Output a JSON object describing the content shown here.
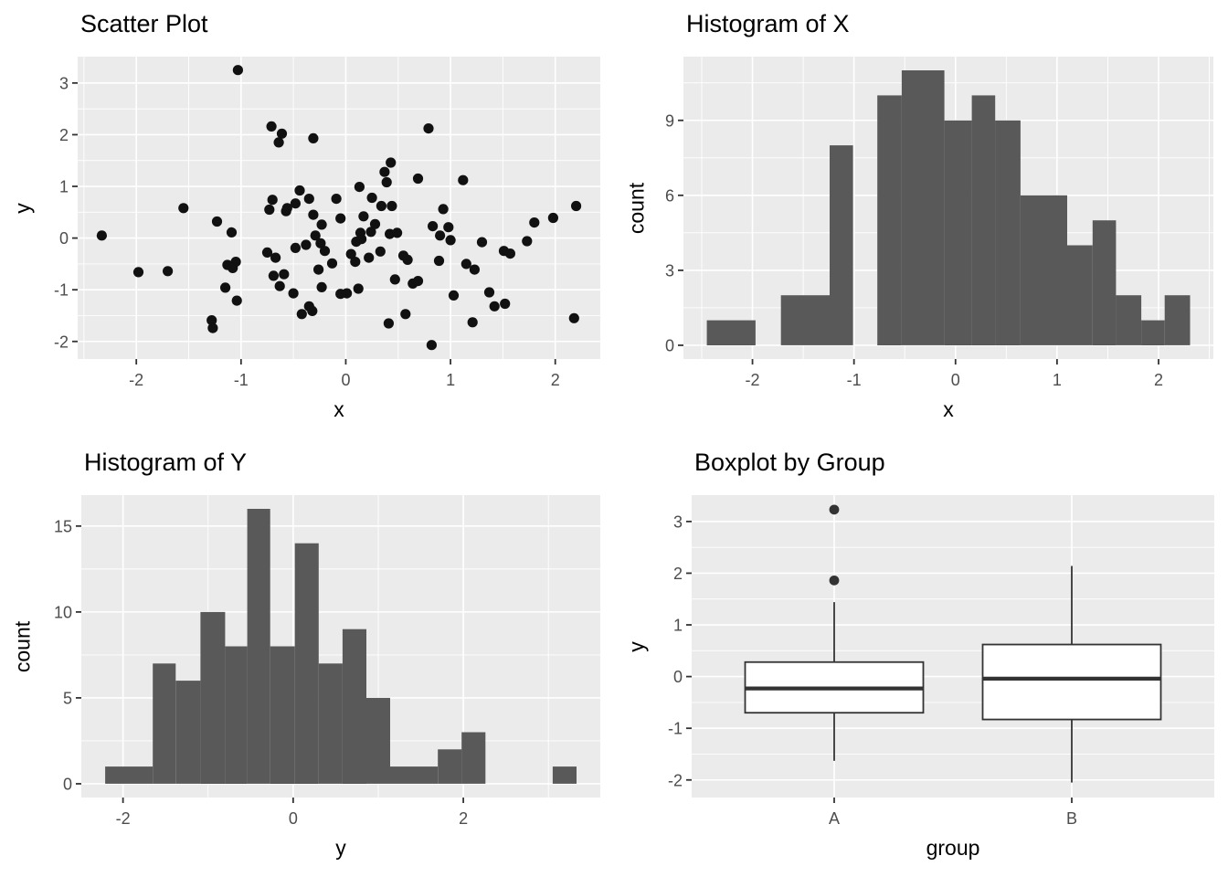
{
  "colors": {
    "background": "#FFFFFF",
    "panel_background": "#EBEBEB",
    "gridline": "#FFFFFF",
    "bar_fill": "#595959",
    "point_fill": "#111111",
    "box_stroke": "#333333",
    "box_fill": "#FFFFFF",
    "tick_mark": "#333333",
    "tick_label": "#4D4D4D",
    "title_text": "#000000",
    "axis_title_text": "#000000"
  },
  "chart_data": [
    {
      "id": "scatter",
      "type": "scatter",
      "title": "Scatter Plot",
      "xlabel": "x",
      "ylabel": "y",
      "xlim": [
        -2.56,
        2.43
      ],
      "ylim": [
        -2.34,
        3.51
      ],
      "x_tick_values": [
        -2,
        -1,
        0,
        1,
        2
      ],
      "x_tick_labels": [
        "-2",
        "-1",
        "0",
        "1",
        "2"
      ],
      "x_minor": [
        -2.5,
        -1.5,
        -0.5,
        0.5,
        1.5
      ],
      "y_tick_values": [
        -2,
        -1,
        0,
        1,
        2,
        3
      ],
      "y_tick_labels": [
        "-2",
        "-1",
        "0",
        "1",
        "2",
        "3"
      ],
      "y_minor": [
        -1.5,
        -0.5,
        0.5,
        1.5,
        2.5
      ],
      "grid": true,
      "legend": "none",
      "points": [
        [
          -1.03,
          3.25
        ],
        [
          -0.71,
          2.16
        ],
        [
          -0.61,
          2.02
        ],
        [
          -0.64,
          1.85
        ],
        [
          -0.31,
          1.93
        ],
        [
          0.79,
          2.12
        ],
        [
          0.43,
          1.46
        ],
        [
          0.37,
          1.28
        ],
        [
          0.39,
          1.08
        ],
        [
          0.69,
          1.15
        ],
        [
          1.12,
          1.12
        ],
        [
          0.13,
          0.99
        ],
        [
          -0.44,
          0.92
        ],
        [
          0.25,
          0.78
        ],
        [
          -0.7,
          0.74
        ],
        [
          -0.35,
          0.76
        ],
        [
          -0.09,
          0.76
        ],
        [
          -1.55,
          0.58
        ],
        [
          -0.56,
          0.58
        ],
        [
          -0.48,
          0.67
        ],
        [
          0.34,
          0.62
        ],
        [
          0.44,
          0.62
        ],
        [
          0.93,
          0.56
        ],
        [
          2.2,
          0.62
        ],
        [
          -1.23,
          0.32
        ],
        [
          -1.09,
          0.11
        ],
        [
          -2.33,
          0.05
        ],
        [
          -0.73,
          0.55
        ],
        [
          -0.57,
          0.52
        ],
        [
          -0.31,
          0.45
        ],
        [
          -0.23,
          0.26
        ],
        [
          -0.29,
          0.05
        ],
        [
          -0.05,
          0.38
        ],
        [
          0.17,
          0.42
        ],
        [
          0.28,
          0.27
        ],
        [
          0.14,
          0.1
        ],
        [
          0.24,
          0.12
        ],
        [
          0.1,
          -0.07
        ],
        [
          0.15,
          -0.02
        ],
        [
          0.42,
          0.08
        ],
        [
          0.49,
          0.1
        ],
        [
          0.83,
          0.23
        ],
        [
          0.98,
          0.21
        ],
        [
          0.9,
          0.05
        ],
        [
          1.0,
          -0.04
        ],
        [
          1.8,
          0.3
        ],
        [
          1.98,
          0.39
        ],
        [
          1.73,
          -0.06
        ],
        [
          1.3,
          -0.08
        ],
        [
          1.51,
          -0.25
        ],
        [
          1.57,
          -0.3
        ],
        [
          0.05,
          -0.31
        ],
        [
          0.09,
          -0.46
        ],
        [
          0.22,
          -0.38
        ],
        [
          0.33,
          -0.26
        ],
        [
          0.55,
          -0.34
        ],
        [
          0.59,
          -0.42
        ],
        [
          0.89,
          -0.44
        ],
        [
          1.15,
          -0.5
        ],
        [
          1.23,
          -0.61
        ],
        [
          0.47,
          -0.8
        ],
        [
          0.64,
          -0.88
        ],
        [
          0.69,
          -0.83
        ],
        [
          0.01,
          -1.07
        ],
        [
          0.12,
          -0.98
        ],
        [
          1.03,
          -1.11
        ],
        [
          1.37,
          -1.05
        ],
        [
          1.42,
          -1.32
        ],
        [
          1.52,
          -1.27
        ],
        [
          0.57,
          -1.47
        ],
        [
          0.41,
          -1.65
        ],
        [
          1.21,
          -1.63
        ],
        [
          2.18,
          -1.55
        ],
        [
          0.82,
          -2.07
        ],
        [
          -0.75,
          -0.28
        ],
        [
          -0.67,
          -0.38
        ],
        [
          -0.48,
          -0.19
        ],
        [
          -0.38,
          -0.13
        ],
        [
          -0.24,
          -0.1
        ],
        [
          -0.2,
          -0.25
        ],
        [
          -0.26,
          -0.61
        ],
        [
          -0.13,
          -0.49
        ],
        [
          -1.98,
          -0.66
        ],
        [
          -1.7,
          -0.64
        ],
        [
          -1.13,
          -0.52
        ],
        [
          -1.05,
          -0.46
        ],
        [
          -1.08,
          -0.58
        ],
        [
          -0.69,
          -0.73
        ],
        [
          -0.59,
          -0.7
        ],
        [
          -0.63,
          -0.93
        ],
        [
          -1.15,
          -0.96
        ],
        [
          -0.5,
          -1.07
        ],
        [
          -1.04,
          -1.21
        ],
        [
          -0.23,
          -0.95
        ],
        [
          -0.35,
          -1.32
        ],
        [
          -0.32,
          -1.41
        ],
        [
          -0.42,
          -1.47
        ],
        [
          -1.28,
          -1.59
        ],
        [
          -1.27,
          -1.74
        ],
        [
          -0.05,
          -1.08
        ]
      ]
    },
    {
      "id": "hist_x",
      "type": "histogram",
      "title": "Histogram of X",
      "xlabel": "x",
      "ylabel": "count",
      "xlim": [
        -2.68,
        2.54
      ],
      "ylim": [
        -0.55,
        11.55
      ],
      "x_tick_values": [
        -2,
        -1,
        0,
        1,
        2
      ],
      "x_tick_labels": [
        "-2",
        "-1",
        "0",
        "1",
        "2"
      ],
      "x_minor": [
        -2.5,
        -1.5,
        -0.5,
        0.5,
        1.5,
        2.5
      ],
      "y_tick_values": [
        0,
        3,
        6,
        9
      ],
      "y_tick_labels": [
        "0",
        "3",
        "6",
        "9"
      ],
      "y_minor": [
        1.5,
        4.5,
        7.5,
        10.5
      ],
      "grid": true,
      "legend": "none",
      "bars": [
        [
          -2.45,
          -1.97,
          1
        ],
        [
          -1.72,
          -1.24,
          2
        ],
        [
          -1.24,
          -1.01,
          8
        ],
        [
          -0.77,
          -0.53,
          10
        ],
        [
          -0.53,
          -0.11,
          11
        ],
        [
          -0.11,
          0.16,
          9
        ],
        [
          0.16,
          0.39,
          10
        ],
        [
          0.39,
          0.64,
          9
        ],
        [
          0.64,
          1.1,
          6
        ],
        [
          1.1,
          1.35,
          4
        ],
        [
          1.35,
          1.58,
          5
        ],
        [
          1.58,
          1.83,
          2
        ],
        [
          1.83,
          2.06,
          1
        ],
        [
          2.06,
          2.31,
          2
        ]
      ]
    },
    {
      "id": "hist_y",
      "type": "histogram",
      "title": "Histogram of Y",
      "xlabel": "y",
      "ylabel": "count",
      "xlim": [
        -2.49,
        3.61
      ],
      "ylim": [
        -0.8,
        16.8
      ],
      "x_tick_values": [
        -2,
        0,
        2
      ],
      "x_tick_labels": [
        "-2",
        "0",
        "2"
      ],
      "x_minor": [
        -1,
        1,
        3
      ],
      "y_tick_values": [
        0,
        5,
        10,
        15
      ],
      "y_tick_labels": [
        "0",
        "5",
        "10",
        "15"
      ],
      "y_minor": [
        2.5,
        7.5,
        12.5
      ],
      "grid": true,
      "legend": "none",
      "bars": [
        [
          -2.21,
          -1.65,
          1
        ],
        [
          -1.65,
          -1.38,
          7
        ],
        [
          -1.38,
          -1.09,
          6
        ],
        [
          -1.09,
          -0.8,
          10
        ],
        [
          -0.8,
          -0.54,
          8
        ],
        [
          -0.54,
          -0.27,
          16
        ],
        [
          -0.27,
          0.02,
          8
        ],
        [
          0.02,
          0.3,
          14
        ],
        [
          0.3,
          0.58,
          7
        ],
        [
          0.58,
          0.86,
          9
        ],
        [
          0.86,
          1.14,
          5
        ],
        [
          1.14,
          1.7,
          1
        ],
        [
          1.7,
          1.98,
          2
        ],
        [
          1.98,
          2.26,
          3
        ],
        [
          3.05,
          3.33,
          1
        ]
      ]
    },
    {
      "id": "boxplot",
      "type": "boxplot",
      "title": "Boxplot by Group",
      "xlabel": "group",
      "ylabel": "y",
      "xlim": [
        0.4,
        2.6
      ],
      "ylim": [
        -2.34,
        3.51
      ],
      "categories": [
        "A",
        "B"
      ],
      "x_tick_values": [
        1,
        2
      ],
      "x_tick_labels": [
        "A",
        "B"
      ],
      "x_minor": [],
      "y_tick_values": [
        -2,
        -1,
        0,
        1,
        2,
        3
      ],
      "y_tick_labels": [
        "-2",
        "-1",
        "0",
        "1",
        "2",
        "3"
      ],
      "y_minor": [
        -1.5,
        -0.5,
        0.5,
        1.5,
        2.5
      ],
      "grid": true,
      "legend": "none",
      "box_half_width": 0.375,
      "boxes": [
        {
          "category": "A",
          "pos": 1,
          "whisker_low": -1.63,
          "q1": -0.7,
          "median": -0.23,
          "q3": 0.28,
          "whisker_high": 1.44,
          "outliers": [
            1.86,
            3.23
          ]
        },
        {
          "category": "B",
          "pos": 2,
          "whisker_low": -2.05,
          "q1": -0.83,
          "median": -0.04,
          "q3": 0.62,
          "whisker_high": 2.14,
          "outliers": []
        }
      ]
    }
  ]
}
